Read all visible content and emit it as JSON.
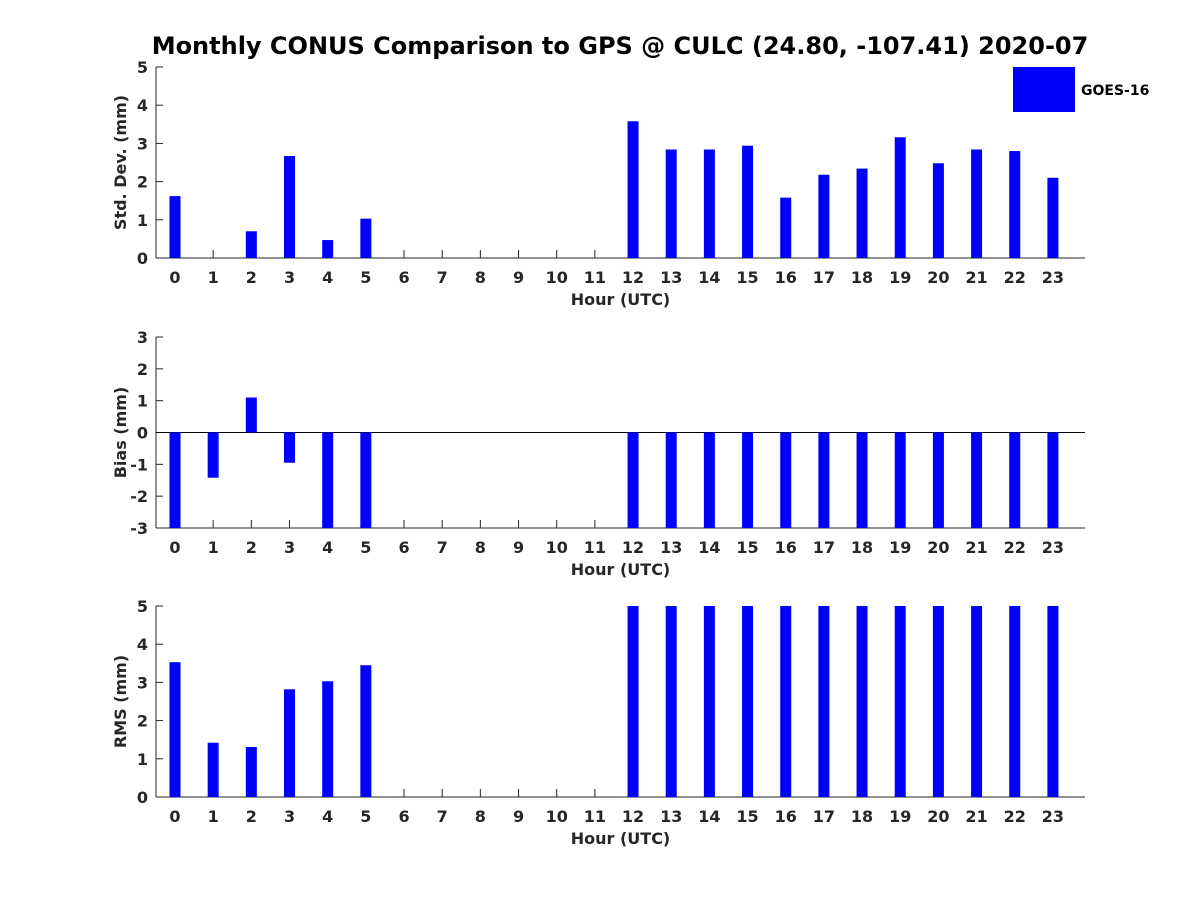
{
  "title": "Monthly CONUS Comparison to GPS @ CULC (24.80, -107.41) 2020-07",
  "colors": {
    "bar": "#0000ff",
    "axis": "#262626",
    "background": "#ffffff"
  },
  "legend": {
    "label": "GOES-16",
    "placement": "top-right"
  },
  "chart_data": [
    {
      "type": "bar",
      "xlabel": "Hour (UTC)",
      "ylabel": "Std. Dev. (mm)",
      "ylim": [
        0,
        5
      ],
      "yticks": [
        "0",
        "1",
        "2",
        "3",
        "4",
        "5"
      ],
      "categories": [
        "0",
        "1",
        "2",
        "3",
        "4",
        "5",
        "6",
        "7",
        "8",
        "9",
        "10",
        "11",
        "12",
        "13",
        "14",
        "15",
        "16",
        "17",
        "18",
        "19",
        "20",
        "21",
        "22",
        "23"
      ],
      "series": [
        {
          "name": "GOES-16",
          "values": [
            1.62,
            null,
            0.7,
            2.67,
            0.47,
            1.03,
            null,
            null,
            null,
            null,
            null,
            null,
            3.58,
            2.84,
            2.84,
            2.94,
            1.58,
            2.18,
            2.34,
            3.16,
            2.48,
            2.84,
            2.8,
            2.1
          ]
        }
      ],
      "grid": false
    },
    {
      "type": "bar",
      "xlabel": "Hour (UTC)",
      "ylabel": "Bias (mm)",
      "ylim": [
        -3,
        3
      ],
      "yticks": [
        "-3",
        "-2",
        "-1",
        "0",
        "1",
        "2",
        "3"
      ],
      "zero_line": true,
      "categories": [
        "0",
        "1",
        "2",
        "3",
        "4",
        "5",
        "6",
        "7",
        "8",
        "9",
        "10",
        "11",
        "12",
        "13",
        "14",
        "15",
        "16",
        "17",
        "18",
        "19",
        "20",
        "21",
        "22",
        "23"
      ],
      "series": [
        {
          "name": "GOES-16",
          "values": [
            -3,
            -1.42,
            1.1,
            -0.95,
            -3,
            -3,
            null,
            null,
            null,
            null,
            null,
            null,
            -3,
            -3,
            -3,
            -3,
            -3,
            -3,
            -3,
            -3,
            -3,
            -3,
            -3,
            -3
          ]
        }
      ],
      "grid": false
    },
    {
      "type": "bar",
      "xlabel": "Hour (UTC)",
      "ylabel": "RMS (mm)",
      "ylim": [
        0,
        5
      ],
      "yticks": [
        "0",
        "1",
        "2",
        "3",
        "4",
        "5"
      ],
      "categories": [
        "0",
        "1",
        "2",
        "3",
        "4",
        "5",
        "6",
        "7",
        "8",
        "9",
        "10",
        "11",
        "12",
        "13",
        "14",
        "15",
        "16",
        "17",
        "18",
        "19",
        "20",
        "21",
        "22",
        "23"
      ],
      "series": [
        {
          "name": "GOES-16",
          "values": [
            3.53,
            1.42,
            1.31,
            2.82,
            3.03,
            3.45,
            null,
            null,
            null,
            null,
            null,
            null,
            5,
            5,
            5,
            5,
            5,
            5,
            5,
            5,
            5,
            5,
            5,
            5
          ]
        }
      ],
      "grid": false
    }
  ]
}
